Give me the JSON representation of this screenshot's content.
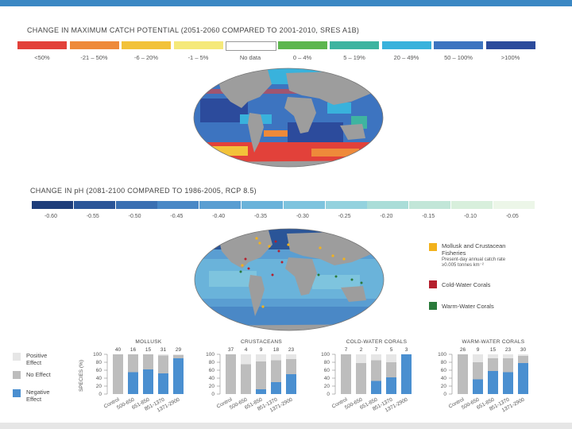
{
  "catch": {
    "title": "CHANGE IN MAXIMUM CATCH POTENTIAL (2051-2060 COMPARED TO 2001-2010, SRES A1B)",
    "legend": [
      {
        "label": "<50%",
        "color": "#e2413a"
      },
      {
        "label": "-21 – 50%",
        "color": "#ee8a3a"
      },
      {
        "label": "-6 – 20%",
        "color": "#f2c23a"
      },
      {
        "label": "-1 – 5%",
        "color": "#f5e97a"
      },
      {
        "label": "No data",
        "color": "#ffffff"
      },
      {
        "label": "0 – 4%",
        "color": "#5db64e"
      },
      {
        "label": "5 – 19%",
        "color": "#3fb4a0"
      },
      {
        "label": "20 – 49%",
        "color": "#39b2dc"
      },
      {
        "label": "50 – 100%",
        "color": "#3d74c0"
      },
      {
        "label": ">100%",
        "color": "#2c4b9c"
      }
    ]
  },
  "ph": {
    "title": "CHANGE IN pH (2081-2100 COMPARED TO 1986-2005, RCP 8.5)",
    "ticks": [
      "-0.60",
      "-0.55",
      "-0.50",
      "-0.45",
      "-0.40",
      "-0.35",
      "-0.30",
      "-0.25",
      "-0.20",
      "-0.15",
      "-0.10",
      "-0.05"
    ],
    "colors": [
      "#1e3d7a",
      "#2a5598",
      "#3a6fb2",
      "#4a88c6",
      "#5a9ed2",
      "#6ab3da",
      "#7ec4de",
      "#94d2de",
      "#aaddd8",
      "#c2e6d8",
      "#d8efdc",
      "#ecf6e8"
    ]
  },
  "map_legend": [
    {
      "label": "Mollusk and Crustacean Fisheries",
      "note": "Present-day annual catch rate ≥0.005 tonnes km⁻²",
      "color": "#f2b21c"
    },
    {
      "label": "Cold-Water Corals",
      "color": "#b5202e"
    },
    {
      "label": "Warm-Water Corals",
      "color": "#2a7a3a"
    }
  ],
  "effect_legend": [
    {
      "label": "Positive Effect",
      "color": "#e6e6e6"
    },
    {
      "label": "No Effect",
      "color": "#bdbdbd"
    },
    {
      "label": "Negative Effect",
      "color": "#4a8fd0"
    }
  ],
  "species_axis_label": "SPECIES (%)",
  "chart_data": [
    {
      "type": "bar",
      "title": "MOLLUSK",
      "ylabel": "SPECIES (%)",
      "ylim": [
        0,
        100
      ],
      "yticks": [
        "0",
        "20",
        "40",
        "60",
        "80",
        "100"
      ],
      "categories": [
        "Control",
        "500-650",
        "651-850",
        "851-1370",
        "1371-2900"
      ],
      "n": [
        "40",
        "16",
        "15",
        "31",
        "29"
      ],
      "series": [
        {
          "name": "Negative Effect",
          "values": [
            0,
            55,
            62,
            52,
            90
          ]
        },
        {
          "name": "No Effect",
          "values": [
            100,
            45,
            38,
            45,
            8
          ]
        },
        {
          "name": "Positive Effect",
          "values": [
            0,
            0,
            0,
            3,
            2
          ]
        }
      ]
    },
    {
      "type": "bar",
      "title": "CRUSTACEANS",
      "ylabel": "SPECIES (%)",
      "ylim": [
        0,
        100
      ],
      "yticks": [
        "0",
        "20",
        "40",
        "60",
        "80",
        "100"
      ],
      "categories": [
        "Control",
        "500-650",
        "651-850",
        "851-1370",
        "1371-2900"
      ],
      "n": [
        "37",
        "4",
        "9",
        "18",
        "23"
      ],
      "series": [
        {
          "name": "Negative Effect",
          "values": [
            0,
            0,
            12,
            30,
            50
          ]
        },
        {
          "name": "No Effect",
          "values": [
            100,
            75,
            70,
            55,
            38
          ]
        },
        {
          "name": "Positive Effect",
          "values": [
            0,
            25,
            18,
            15,
            12
          ]
        }
      ]
    },
    {
      "type": "bar",
      "title": "COLD-WATER CORALS",
      "ylabel": "SPECIES (%)",
      "ylim": [
        0,
        100
      ],
      "yticks": [
        "0",
        "20",
        "40",
        "60",
        "80",
        "100"
      ],
      "categories": [
        "Control",
        "500-650",
        "651-850",
        "851-1370",
        "1371-2900"
      ],
      "n": [
        "7",
        "2",
        "7",
        "5",
        "3"
      ],
      "series": [
        {
          "name": "Negative Effect",
          "values": [
            0,
            0,
            33,
            42,
            100
          ]
        },
        {
          "name": "No Effect",
          "values": [
            100,
            78,
            52,
            38,
            0
          ]
        },
        {
          "name": "Positive Effect",
          "values": [
            0,
            22,
            15,
            20,
            0
          ]
        }
      ]
    },
    {
      "type": "bar",
      "title": "WARM-WATER CORALS",
      "ylabel": "SPECIES (%)",
      "ylim": [
        0,
        100
      ],
      "yticks": [
        "0",
        "20",
        "40",
        "60",
        "80",
        "100"
      ],
      "categories": [
        "Control",
        "500-650",
        "651-850",
        "851-1370",
        "1371-2900"
      ],
      "n": [
        "26",
        "9",
        "15",
        "23",
        "30"
      ],
      "series": [
        {
          "name": "Negative Effect",
          "values": [
            0,
            37,
            58,
            55,
            78
          ]
        },
        {
          "name": "No Effect",
          "values": [
            100,
            43,
            32,
            35,
            18
          ]
        },
        {
          "name": "Positive Effect",
          "values": [
            0,
            20,
            10,
            10,
            4
          ]
        }
      ]
    }
  ]
}
